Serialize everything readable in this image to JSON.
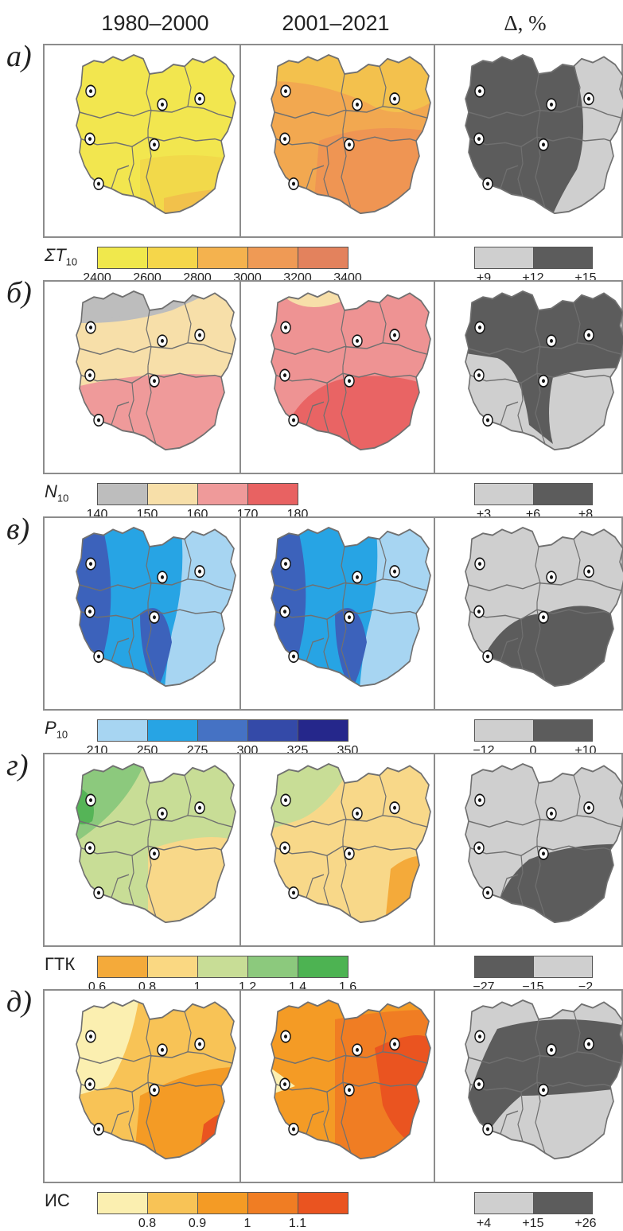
{
  "headers": [
    "1980–2000",
    "2001–2021",
    "Δ, %"
  ],
  "panels": [
    {
      "label": "а)",
      "variable": {
        "base": "ΣT",
        "sub": "10",
        "italic": true
      },
      "scale_colors": [
        "#f0e84c",
        "#f5d64a",
        "#f4b24e",
        "#ef9a55",
        "#e3825d"
      ],
      "scale_ticks": [
        "2400",
        "2600",
        "2800",
        "3000",
        "3200",
        "3400"
      ],
      "map1_colors": [
        "#f2e64f",
        "#f2d94a",
        "#f2c14b"
      ],
      "map2_colors": [
        "#f3c14d",
        "#f2a850",
        "#ef9553"
      ],
      "delta_colors": [
        "#cfcfcf",
        "#5c5c5c"
      ],
      "delta_ticks": [
        "+9",
        "+12",
        "+15"
      ],
      "delta_high_region": "west"
    },
    {
      "label": "б)",
      "variable": {
        "base": "N",
        "sub": "10",
        "italic": true
      },
      "scale_colors": [
        "#bdbdbd",
        "#f7dfa9",
        "#ef9a9a",
        "#e86262"
      ],
      "scale_ticks": [
        "140",
        "150",
        "160",
        "170",
        "180"
      ],
      "map1_colors": [
        "#bdbdbd",
        "#f7dfa9",
        "#ef9a9a"
      ],
      "map2_colors": [
        "#f7dfa9",
        "#ee9393",
        "#e96464"
      ],
      "delta_colors": [
        "#cfcfcf",
        "#5c5c5c"
      ],
      "delta_ticks": [
        "+3",
        "+6",
        "+8"
      ],
      "delta_high_region": "north"
    },
    {
      "label": "в)",
      "variable": {
        "base": "P",
        "sub": "10",
        "italic": true
      },
      "scale_colors": [
        "#a7d5f2",
        "#27a4e4",
        "#4572c4",
        "#344aa8",
        "#25278b"
      ],
      "scale_ticks": [
        "210",
        "250",
        "275",
        "300",
        "325",
        "350"
      ],
      "map1_colors": [
        "#a7d5f2",
        "#27a4e4",
        "#3c62bb",
        "#25278b"
      ],
      "map2_colors": [
        "#a7d5f2",
        "#27a4e4",
        "#3c62bb",
        "#25278b"
      ],
      "delta_colors": [
        "#cfcfcf",
        "#5c5c5c"
      ],
      "delta_ticks": [
        "−12",
        "0",
        "+10"
      ],
      "delta_high_region": "south"
    },
    {
      "label": "г)",
      "variable": {
        "base": "ГТК",
        "sub": "",
        "italic": false
      },
      "scale_colors": [
        "#f4aa3a",
        "#fad882",
        "#c8dd96",
        "#8cc97d",
        "#4db352"
      ],
      "scale_ticks": [
        "0.6",
        "0.8",
        "1",
        "1.2",
        "1.4",
        "1.6"
      ],
      "map1_colors": [
        "#f8d889",
        "#c8dd96",
        "#8cc97d",
        "#55b457"
      ],
      "map2_colors": [
        "#f4aa3a",
        "#f8d889",
        "#c8dd96",
        "#9dd08a"
      ],
      "delta_colors": [
        "#5c5c5c",
        "#cfcfcf"
      ],
      "delta_ticks": [
        "−27",
        "−15",
        "−2"
      ],
      "delta_high_region": "southeast-light"
    },
    {
      "label": "д)",
      "variable": {
        "base": "ИС",
        "sub": "",
        "italic": false
      },
      "scale_colors": [
        "#fbefb0",
        "#f8c356",
        "#f49b25",
        "#f07d23",
        "#ea5420"
      ],
      "scale_ticks": [
        "0.8",
        "0.9",
        "1",
        "1.1"
      ],
      "map1_colors": [
        "#fbefb0",
        "#f8c356",
        "#f49b25",
        "#ea5420"
      ],
      "map2_colors": [
        "#f8c356",
        "#f49b25",
        "#f07d23",
        "#ea5420"
      ],
      "delta_colors": [
        "#cfcfcf",
        "#5c5c5c"
      ],
      "delta_ticks": [
        "+4",
        "+15",
        "+26"
      ],
      "delta_high_region": "northeast"
    }
  ],
  "colors": {
    "frame": "#8c8c8c",
    "border": "#707070",
    "city": "#111111"
  }
}
